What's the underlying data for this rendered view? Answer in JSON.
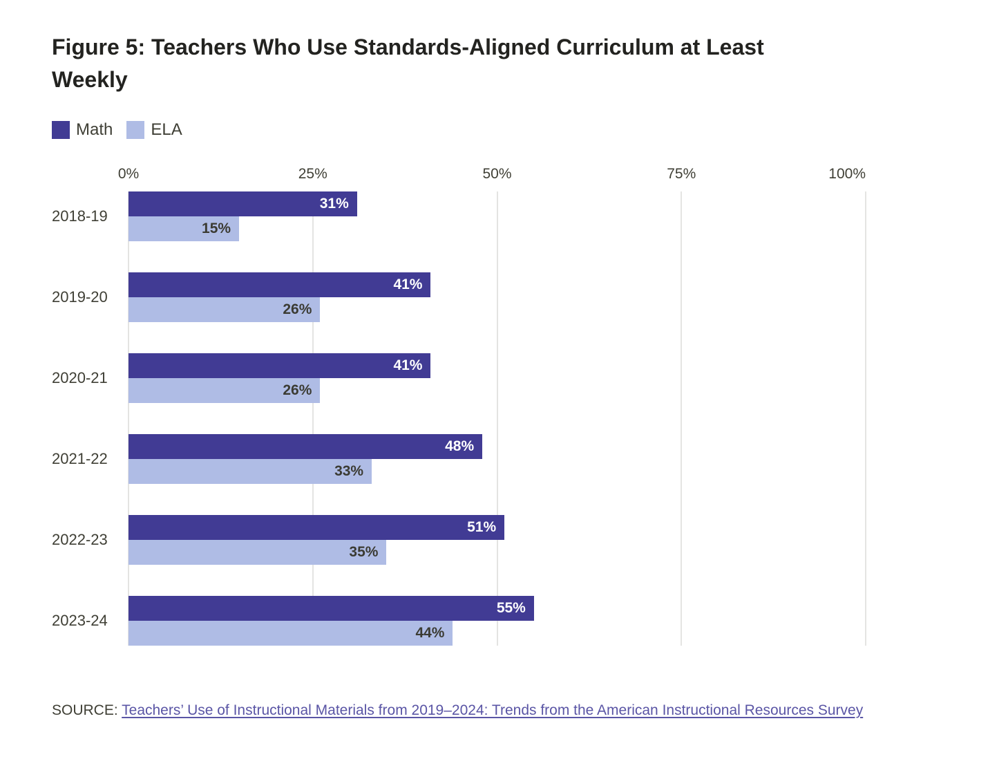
{
  "figure": {
    "title": "Figure 5: Teachers Who Use Standards-Aligned Curriculum at Least\nWeekly"
  },
  "chart_data": {
    "type": "bar",
    "orientation": "horizontal",
    "title": "Figure 5: Teachers Who Use Standards-Aligned Curriculum at Least Weekly",
    "categories": [
      "2018-19",
      "2019-20",
      "2020-21",
      "2021-22",
      "2022-23",
      "2023-24"
    ],
    "series": [
      {
        "name": "Math",
        "color": "#413B94",
        "values": [
          31,
          41,
          41,
          48,
          51,
          55
        ]
      },
      {
        "name": "ELA",
        "color": "#AFBCE5",
        "values": [
          15,
          26,
          26,
          33,
          35,
          44
        ]
      }
    ],
    "value_suffix": "%",
    "x_axis": {
      "ticks": [
        "0%",
        "25%",
        "50%",
        "75%",
        "100%"
      ],
      "tick_values": [
        0,
        25,
        50,
        75,
        100
      ],
      "min": 0,
      "max": 100
    },
    "grid": "vertical",
    "legend_position": "top-left",
    "value_labels": "inside-end"
  },
  "source": {
    "prefix": "SOURCE: ",
    "link_text": "Teachers’ Use of Instructional Materials from 2019–2024: Trends from the American Instructional Resources Survey"
  },
  "colors": {
    "background": "#FFFFFF",
    "title_text": "#232320",
    "axis_text": "#3F3F35",
    "gridline": "#E4E4E2",
    "value_dark": "#3B3B33",
    "value_light": "#FFFFFF",
    "link": "#5A55A5"
  }
}
